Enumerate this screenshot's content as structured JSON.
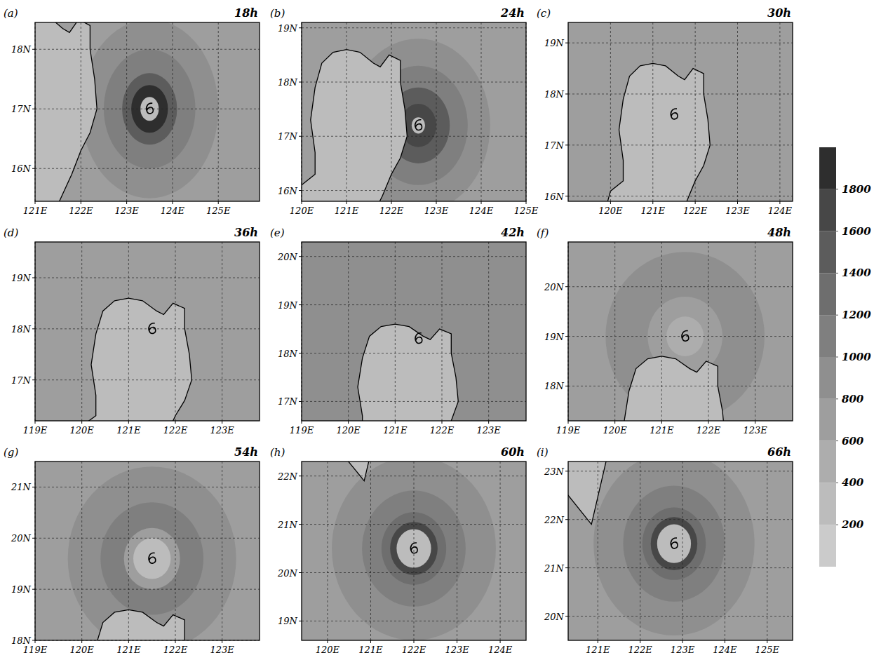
{
  "chart_data": {
    "type": "map",
    "grid": true,
    "colorbar": {
      "lim": [
        0,
        2000
      ],
      "ticks": [
        200,
        400,
        600,
        800,
        1000,
        1200,
        1400,
        1600,
        1800
      ],
      "colors": [
        "#cbcbcb",
        "#bcbcbc",
        "#adadad",
        "#9e9e9e",
        "#8f8f8f",
        "#7f7f7f",
        "#6e6e6e",
        "#5c5c5c",
        "#474747",
        "#2e2e2e"
      ]
    },
    "coastlines": [
      {
        "points": [
          [
            119.5,
            14.0
          ],
          [
            119.8,
            15.5
          ],
          [
            120.0,
            16.1
          ],
          [
            120.3,
            16.3
          ],
          [
            120.3,
            16.7
          ],
          [
            120.2,
            17.3
          ],
          [
            120.3,
            17.9
          ],
          [
            120.45,
            18.35
          ],
          [
            120.7,
            18.55
          ],
          [
            121.0,
            18.6
          ],
          [
            121.3,
            18.55
          ],
          [
            121.6,
            18.35
          ],
          [
            121.75,
            18.28
          ],
          [
            121.95,
            18.5
          ],
          [
            122.2,
            18.4
          ],
          [
            122.2,
            18.0
          ],
          [
            122.3,
            17.5
          ],
          [
            122.35,
            17.0
          ],
          [
            122.2,
            16.6
          ],
          [
            122.0,
            16.3
          ],
          [
            121.8,
            15.9
          ],
          [
            121.5,
            15.4
          ],
          [
            121.6,
            14.0
          ]
        ]
      },
      {
        "points": [
          [
            121.3,
            23.6
          ],
          [
            120.85,
            21.9
          ],
          [
            120.3,
            22.5
          ],
          [
            119.5,
            23.6
          ]
        ]
      }
    ],
    "panels": [
      {
        "label": "(a)",
        "time": "18h",
        "xlim": [
          121,
          125.9
        ],
        "ylim": [
          15.45,
          18.45
        ],
        "xticks": [
          {
            "value": 121,
            "label": "121E"
          },
          {
            "value": 122,
            "label": "122E"
          },
          {
            "value": 123,
            "label": "123E"
          },
          {
            "value": 124,
            "label": "124E"
          },
          {
            "value": 125,
            "label": "125E"
          }
        ],
        "yticks": [
          {
            "value": 16,
            "label": "16N"
          },
          {
            "value": 17,
            "label": "17N"
          },
          {
            "value": 18,
            "label": "18N"
          }
        ],
        "center": [
          123.5,
          17.0
        ],
        "background": 700,
        "land": 300,
        "rings": [
          {
            "r": 1.5,
            "value": 900
          },
          {
            "r": 1.0,
            "value": 1100
          },
          {
            "r": 0.6,
            "value": 1500
          },
          {
            "r": 0.4,
            "value": 1800
          },
          {
            "r": 0.2,
            "value": 300
          }
        ]
      },
      {
        "label": "(b)",
        "time": "24h",
        "xlim": [
          120,
          125
        ],
        "ylim": [
          15.8,
          19.1
        ],
        "xticks": [
          {
            "value": 120,
            "label": "120E"
          },
          {
            "value": 121,
            "label": "121E"
          },
          {
            "value": 122,
            "label": "122E"
          },
          {
            "value": 123,
            "label": "123E"
          },
          {
            "value": 124,
            "label": "124E"
          },
          {
            "value": 125,
            "label": "125E"
          }
        ],
        "yticks": [
          {
            "value": 16,
            "label": "16N"
          },
          {
            "value": 17,
            "label": "17N"
          },
          {
            "value": 18,
            "label": "18N"
          },
          {
            "value": 19,
            "label": "19N"
          }
        ],
        "center": [
          122.6,
          17.2
        ],
        "background": 700,
        "land": 300,
        "rings": [
          {
            "r": 1.6,
            "value": 900
          },
          {
            "r": 1.1,
            "value": 1100
          },
          {
            "r": 0.7,
            "value": 1400
          },
          {
            "r": 0.4,
            "value": 1700
          },
          {
            "r": 0.15,
            "value": 300
          }
        ]
      },
      {
        "label": "(c)",
        "time": "30h",
        "xlim": [
          119,
          124.3
        ],
        "ylim": [
          15.9,
          19.4
        ],
        "xticks": [
          {
            "value": 120,
            "label": "120E"
          },
          {
            "value": 121,
            "label": "121E"
          },
          {
            "value": 122,
            "label": "122E"
          },
          {
            "value": 123,
            "label": "123E"
          },
          {
            "value": 124,
            "label": "124E"
          }
        ],
        "yticks": [
          {
            "value": 16,
            "label": "16N"
          },
          {
            "value": 17,
            "label": "17N"
          },
          {
            "value": 18,
            "label": "18N"
          },
          {
            "value": 19,
            "label": "19N"
          }
        ],
        "center": [
          121.5,
          17.6
        ],
        "background": 700,
        "land": 300,
        "rings": []
      },
      {
        "label": "(d)",
        "time": "36h",
        "xlim": [
          119,
          123.8
        ],
        "ylim": [
          16.2,
          19.7
        ],
        "xticks": [
          {
            "value": 119,
            "label": "119E"
          },
          {
            "value": 120,
            "label": "120E"
          },
          {
            "value": 121,
            "label": "121E"
          },
          {
            "value": 122,
            "label": "122E"
          },
          {
            "value": 123,
            "label": "123E"
          }
        ],
        "yticks": [
          {
            "value": 17,
            "label": "17N"
          },
          {
            "value": 18,
            "label": "18N"
          },
          {
            "value": 19,
            "label": "19N"
          }
        ],
        "center": [
          121.5,
          18.0
        ],
        "background": 700,
        "land": 300,
        "rings": []
      },
      {
        "label": "(e)",
        "time": "42h",
        "xlim": [
          119,
          123.8
        ],
        "ylim": [
          16.6,
          20.3
        ],
        "xticks": [
          {
            "value": 119,
            "label": "119E"
          },
          {
            "value": 120,
            "label": "120E"
          },
          {
            "value": 121,
            "label": "121E"
          },
          {
            "value": 122,
            "label": "122E"
          },
          {
            "value": 123,
            "label": "123E"
          }
        ],
        "yticks": [
          {
            "value": 17,
            "label": "17N"
          },
          {
            "value": 18,
            "label": "18N"
          },
          {
            "value": 19,
            "label": "19N"
          },
          {
            "value": 20,
            "label": "20N"
          }
        ],
        "center": [
          121.5,
          18.3
        ],
        "background": 800,
        "land": 300,
        "rings": []
      },
      {
        "label": "(f)",
        "time": "48h",
        "xlim": [
          119,
          123.8
        ],
        "ylim": [
          17.3,
          20.9
        ],
        "xticks": [
          {
            "value": 119,
            "label": "119E"
          },
          {
            "value": 120,
            "label": "120E"
          },
          {
            "value": 121,
            "label": "121E"
          },
          {
            "value": 122,
            "label": "122E"
          },
          {
            "value": 123,
            "label": "123E"
          }
        ],
        "yticks": [
          {
            "value": 18,
            "label": "18N"
          },
          {
            "value": 19,
            "label": "19N"
          },
          {
            "value": 20,
            "label": "20N"
          }
        ],
        "center": [
          121.5,
          19.0
        ],
        "background": 700,
        "land": 300,
        "rings": [
          {
            "r": 1.7,
            "value": 900
          },
          {
            "r": 0.8,
            "value": 700
          },
          {
            "r": 0.4,
            "value": 400
          }
        ]
      },
      {
        "label": "(g)",
        "time": "54h",
        "xlim": [
          119,
          123.8
        ],
        "ylim": [
          18,
          21.5
        ],
        "xticks": [
          {
            "value": 119,
            "label": "119E"
          },
          {
            "value": 120,
            "label": "120E"
          },
          {
            "value": 121,
            "label": "121E"
          },
          {
            "value": 122,
            "label": "122E"
          },
          {
            "value": 123,
            "label": "123E"
          }
        ],
        "yticks": [
          {
            "value": 18,
            "label": "18N"
          },
          {
            "value": 19,
            "label": "19N"
          },
          {
            "value": 20,
            "label": "20N"
          },
          {
            "value": 21,
            "label": "21N"
          }
        ],
        "center": [
          121.5,
          19.6
        ],
        "background": 700,
        "land": 300,
        "rings": [
          {
            "r": 1.8,
            "value": 900
          },
          {
            "r": 1.1,
            "value": 1000
          },
          {
            "r": 0.6,
            "value": 600
          },
          {
            "r": 0.4,
            "value": 300
          }
        ]
      },
      {
        "label": "(h)",
        "time": "60h",
        "xlim": [
          119.4,
          124.6
        ],
        "ylim": [
          18.6,
          22.3
        ],
        "xticks": [
          {
            "value": 120,
            "label": "120E"
          },
          {
            "value": 121,
            "label": "121E"
          },
          {
            "value": 122,
            "label": "122E"
          },
          {
            "value": 123,
            "label": "123E"
          },
          {
            "value": 124,
            "label": "124E"
          }
        ],
        "yticks": [
          {
            "value": 19,
            "label": "19N"
          },
          {
            "value": 20,
            "label": "20N"
          },
          {
            "value": 21,
            "label": "21N"
          },
          {
            "value": 22,
            "label": "22N"
          }
        ],
        "center": [
          122.0,
          20.5
        ],
        "background": 700,
        "land": 300,
        "rings": [
          {
            "r": 1.9,
            "value": 900
          },
          {
            "r": 1.2,
            "value": 1100
          },
          {
            "r": 0.75,
            "value": 1300
          },
          {
            "r": 0.55,
            "value": 1600
          },
          {
            "r": 0.4,
            "value": 200
          }
        ]
      },
      {
        "label": "(i)",
        "time": "66h",
        "xlim": [
          120.3,
          125.6
        ],
        "ylim": [
          19.5,
          23.2
        ],
        "xticks": [
          {
            "value": 121,
            "label": "121E"
          },
          {
            "value": 122,
            "label": "122E"
          },
          {
            "value": 123,
            "label": "123E"
          },
          {
            "value": 124,
            "label": "124E"
          },
          {
            "value": 125,
            "label": "125E"
          }
        ],
        "yticks": [
          {
            "value": 20,
            "label": "20N"
          },
          {
            "value": 21,
            "label": "21N"
          },
          {
            "value": 22,
            "label": "22N"
          },
          {
            "value": 23,
            "label": "23N"
          }
        ],
        "center": [
          122.8,
          21.5
        ],
        "background": 700,
        "land": 300,
        "rings": [
          {
            "r": 1.9,
            "value": 900
          },
          {
            "r": 1.2,
            "value": 1100
          },
          {
            "r": 0.75,
            "value": 1300
          },
          {
            "r": 0.55,
            "value": 1700
          },
          {
            "r": 0.4,
            "value": 200
          }
        ]
      }
    ]
  }
}
